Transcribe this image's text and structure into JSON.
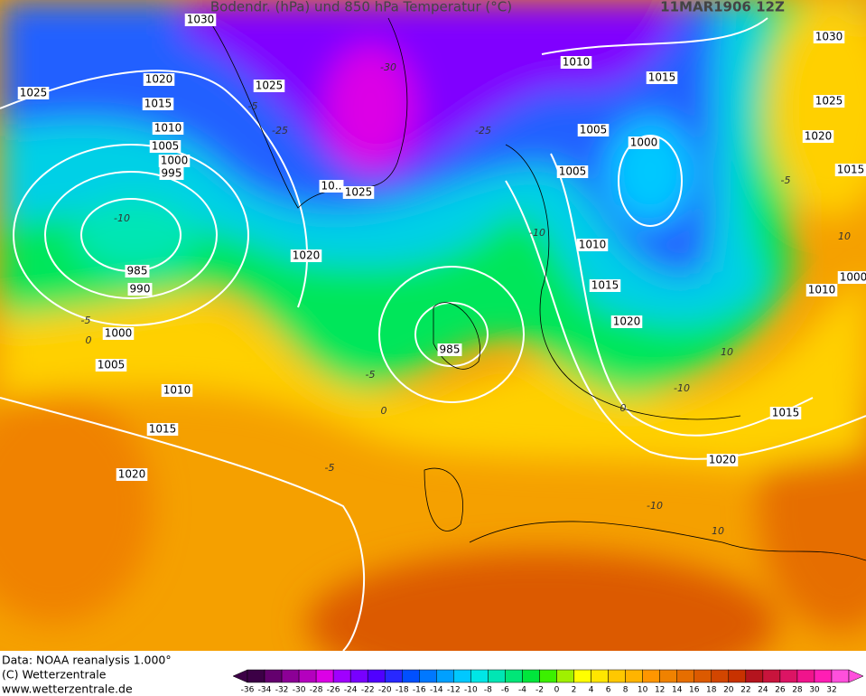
{
  "header": {
    "title": "Bodendr. (hPa) und 850 hPa Temperatur (°C)",
    "date": "11MAR1906 12Z"
  },
  "isobar_labels": [
    "1030",
    "1030",
    "1020",
    "1025",
    "1025",
    "1010",
    "1015",
    "1015",
    "1025",
    "1010",
    "1005",
    "1000",
    "1020",
    "1005",
    "1000",
    "995",
    "1005",
    "1015",
    "10..",
    "1025",
    "1020",
    "1010",
    "985",
    "990",
    "1015",
    "1010",
    "1000",
    "1020",
    "985",
    "1000",
    "1005",
    "1010",
    "1015",
    "1015",
    "1020",
    "1020"
  ],
  "temperature_labels": [
    "-30",
    "-25",
    "-25",
    "-10",
    "-10",
    "-5",
    "-5",
    "0",
    "-5",
    "-10",
    "10",
    "-10",
    "-5",
    "0",
    "0",
    "-5",
    "10",
    "10"
  ],
  "colorbar": {
    "ticks": [
      -36,
      -34,
      -32,
      -30,
      -28,
      -26,
      -24,
      -22,
      -20,
      -18,
      -16,
      -14,
      -12,
      -10,
      -8,
      -6,
      -4,
      -2,
      0,
      2,
      4,
      6,
      8,
      10,
      12,
      14,
      16,
      18,
      20,
      22,
      24,
      26,
      28,
      30,
      32
    ],
    "colors": [
      "#3c0046",
      "#64006e",
      "#8c0096",
      "#b400be",
      "#dc00e6",
      "#a000ff",
      "#7800ff",
      "#5000ff",
      "#2828ff",
      "#0050ff",
      "#0078ff",
      "#00a0ff",
      "#00c8ff",
      "#00e6e6",
      "#00e6b4",
      "#00e678",
      "#00e63c",
      "#3cf000",
      "#a0f000",
      "#ffff00",
      "#ffe600",
      "#ffc800",
      "#ffb400",
      "#ff9600",
      "#f08200",
      "#e66e00",
      "#dc5a00",
      "#d24600",
      "#c83200",
      "#b4141e",
      "#c8143c",
      "#dc1464",
      "#f0148c",
      "#ff1eb4",
      "#ff50dc"
    ]
  },
  "footer": {
    "source": "Data: NOAA reanalysis 1.000°",
    "copyright": "(C) Wetterzentrale",
    "url": "www.wetterzentrale.de"
  }
}
